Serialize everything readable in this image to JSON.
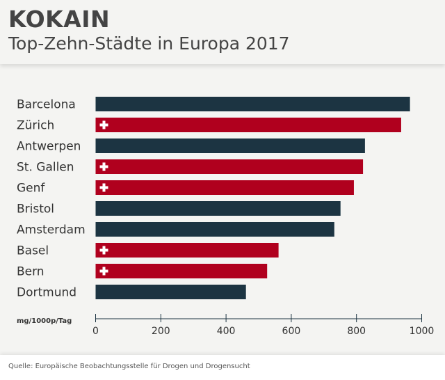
{
  "header": {
    "title": "KOKAIN",
    "subtitle": "Top-Zehn-Städte in Europa 2017"
  },
  "footer": {
    "source": "Quelle: Europäische Beobachtungsstelle für Drogen und Drogensucht"
  },
  "colors": {
    "other": "#1c3442",
    "swiss": "#b0001e",
    "axis": "#1c3442"
  },
  "chart_data": {
    "type": "bar",
    "orientation": "horizontal",
    "title": "KOKAIN",
    "subtitle": "Top-Zehn-Städte in Europa 2017",
    "xlabel": "mg/1000p/Tag",
    "xlim": [
      0,
      1000
    ],
    "xticks": [
      0,
      200,
      400,
      600,
      800,
      1000
    ],
    "categories": [
      "Barcelona",
      "Zürich",
      "Antwerpen",
      "St. Gallen",
      "Genf",
      "Bristol",
      "Amsterdam",
      "Basel",
      "Bern",
      "Dortmund"
    ],
    "values": [
      964,
      937,
      826,
      820,
      792,
      751,
      732,
      561,
      526,
      461
    ],
    "swiss": [
      false,
      true,
      false,
      true,
      true,
      false,
      false,
      true,
      true,
      false
    ]
  }
}
